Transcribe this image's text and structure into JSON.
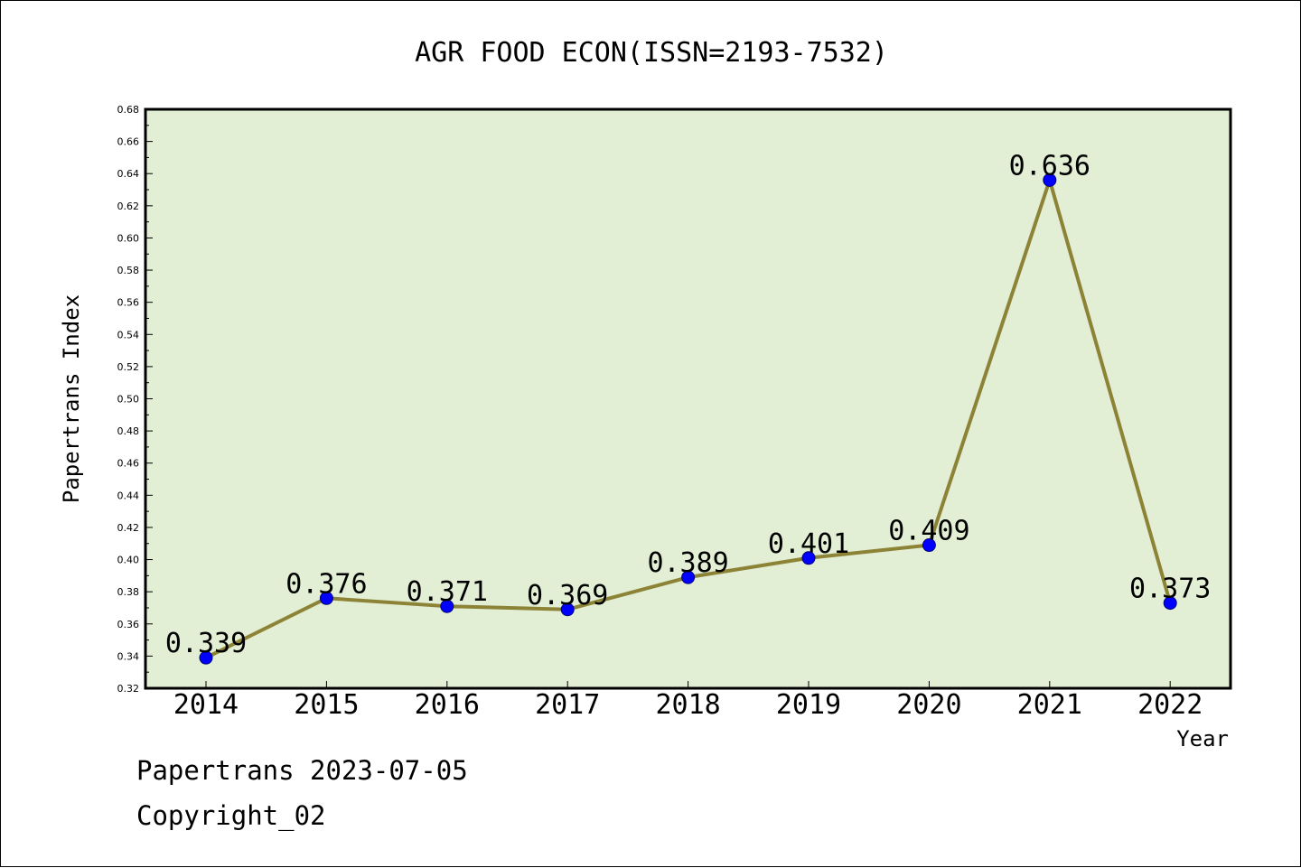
{
  "footer": {
    "line1": "Papertrans 2023-07-05",
    "line2": "Copyright_02"
  },
  "colors": {
    "plot_background": "#e2efd4",
    "line": "#8c8336",
    "marker_fill": "#0000ff",
    "marker_stroke": "#00007a",
    "axis": "#000000"
  },
  "chart_data": {
    "type": "line",
    "title": "AGR FOOD ECON(ISSN=2193-7532)",
    "xlabel": "Year",
    "ylabel": "Papertrans Index",
    "categories": [
      "2014",
      "2015",
      "2016",
      "2017",
      "2018",
      "2019",
      "2020",
      "2021",
      "2022"
    ],
    "series": [
      {
        "values": [
          0.339,
          0.376,
          0.371,
          0.369,
          0.389,
          0.401,
          0.409,
          0.636,
          0.373
        ],
        "data_labels": [
          "0.339",
          "0.376",
          "0.371",
          "0.369",
          "0.389",
          "0.401",
          "0.409",
          "0.636",
          "0.373"
        ]
      }
    ],
    "ylim": [
      0.32,
      0.68
    ],
    "yticks": [
      "0.32",
      "0.34",
      "0.36",
      "0.38",
      "0.40",
      "0.42",
      "0.44",
      "0.46",
      "0.48",
      "0.50",
      "0.52",
      "0.54",
      "0.56",
      "0.58",
      "0.60",
      "0.62",
      "0.64",
      "0.66",
      "0.68"
    ],
    "grid": false,
    "legend": "none"
  }
}
